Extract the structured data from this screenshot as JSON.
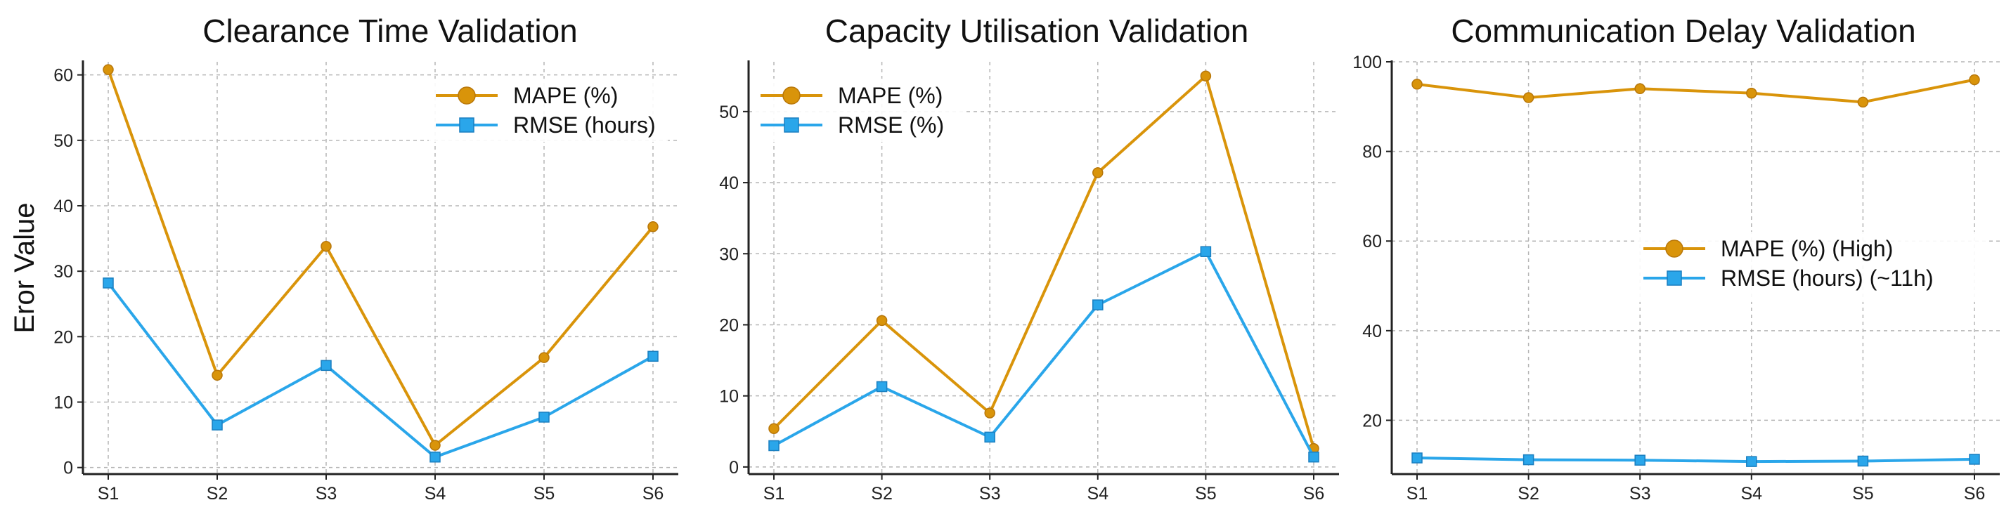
{
  "colors": {
    "mape": "#d9940a",
    "rmse": "#2aa6ea"
  },
  "chart_data": [
    {
      "type": "line",
      "title": "Clearance Time Validation",
      "ylabel": "Eror Value",
      "xlabel": "",
      "categories": [
        "S1",
        "S2",
        "S3",
        "S4",
        "S5",
        "S6"
      ],
      "yticks": [
        0,
        10,
        20,
        30,
        40,
        50,
        60
      ],
      "ylim": [
        -1,
        62
      ],
      "legend_position": "top-right",
      "series": [
        {
          "name": "MAPE (%)",
          "marker": "circle",
          "values": [
            60.8,
            14.1,
            33.8,
            3.4,
            16.8,
            36.8
          ]
        },
        {
          "name": "RMSE (hours)",
          "marker": "square",
          "values": [
            28.2,
            6.5,
            15.6,
            1.6,
            7.7,
            17.0
          ]
        }
      ]
    },
    {
      "type": "line",
      "title": "Capacity Utilisation Validation",
      "ylabel": "",
      "xlabel": "",
      "categories": [
        "S1",
        "S2",
        "S3",
        "S4",
        "S5",
        "S6"
      ],
      "yticks": [
        0,
        10,
        20,
        30,
        40,
        50
      ],
      "ylim": [
        -1,
        57
      ],
      "legend_position": "top-left",
      "series": [
        {
          "name": "MAPE (%)",
          "marker": "circle",
          "values": [
            5.4,
            20.6,
            7.6,
            41.4,
            55.0,
            2.6
          ]
        },
        {
          "name": "RMSE (%)",
          "marker": "square",
          "values": [
            3.0,
            11.3,
            4.2,
            22.8,
            30.3,
            1.4
          ]
        }
      ]
    },
    {
      "type": "line",
      "title": "Communication Delay Validation",
      "ylabel": "",
      "xlabel": "",
      "categories": [
        "S1",
        "S2",
        "S3",
        "S4",
        "S5",
        "S6"
      ],
      "yticks": [
        20,
        40,
        60,
        80,
        100
      ],
      "ylim": [
        8,
        100
      ],
      "legend_position": "center-right",
      "series": [
        {
          "name": "MAPE (%) (High)",
          "marker": "circle",
          "values": [
            95,
            92,
            94,
            93,
            91,
            96
          ]
        },
        {
          "name": "RMSE  (hours) (~11h)",
          "marker": "square",
          "values": [
            11.6,
            11.2,
            11.1,
            10.8,
            10.9,
            11.3
          ]
        }
      ]
    }
  ]
}
